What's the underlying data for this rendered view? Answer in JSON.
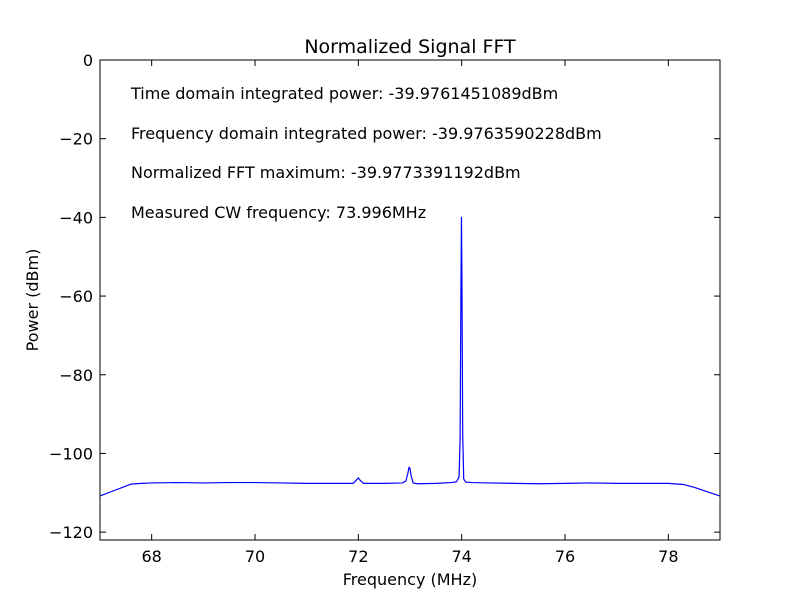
{
  "chart_data": {
    "type": "line",
    "title": "Normalized Signal FFT",
    "xlabel": "Frequency (MHz)",
    "ylabel": "Power (dBm)",
    "xlim": [
      67,
      79
    ],
    "ylim": [
      -122,
      0
    ],
    "xticks": [
      68,
      70,
      72,
      74,
      76,
      78
    ],
    "xtick_labels": [
      "68",
      "70",
      "72",
      "74",
      "76",
      "78"
    ],
    "yticks": [
      0,
      -20,
      -40,
      -60,
      -80,
      -100,
      -120
    ],
    "ytick_labels": [
      "0",
      "−20",
      "−40",
      "−60",
      "−80",
      "−100",
      "−120"
    ],
    "grid": false,
    "line_color": "#0000ff",
    "annotations": [
      "Time domain integrated power: -39.9761451089dBm",
      "Frequency domain integrated power: -39.9763590228dBm",
      "Normalized FFT maximum: -39.9773391192dBm",
      "Measured CW frequency: 73.996MHz"
    ],
    "series": [
      {
        "x": [
          67.0,
          67.2,
          67.4,
          67.6,
          67.8,
          68.0,
          68.5,
          69.0,
          69.5,
          70.0,
          70.5,
          71.0,
          71.5,
          71.9,
          71.96,
          72.0,
          72.04,
          72.1,
          72.5,
          72.85,
          72.92,
          72.96,
          72.98,
          73.0,
          73.02,
          73.06,
          73.15,
          73.5,
          73.8,
          73.9,
          73.95,
          73.97,
          73.985,
          73.996,
          74.005,
          74.02,
          74.04,
          74.08,
          74.2,
          74.5,
          75.0,
          75.5,
          76.0,
          76.5,
          77.0,
          77.5,
          78.0,
          78.3,
          78.5,
          78.7,
          78.9,
          79.0
        ],
        "y": [
          -110.8,
          -109.8,
          -108.8,
          -107.8,
          -107.6,
          -107.5,
          -107.4,
          -107.5,
          -107.4,
          -107.4,
          -107.5,
          -107.6,
          -107.6,
          -107.6,
          -106.8,
          -106.2,
          -106.9,
          -107.6,
          -107.6,
          -107.5,
          -107.0,
          -105.0,
          -103.5,
          -103.8,
          -105.6,
          -107.5,
          -107.7,
          -107.6,
          -107.4,
          -107.2,
          -106.0,
          -96.0,
          -60.0,
          -40.0,
          -55.0,
          -95.0,
          -106.5,
          -107.3,
          -107.4,
          -107.5,
          -107.6,
          -107.7,
          -107.6,
          -107.5,
          -107.6,
          -107.6,
          -107.6,
          -107.9,
          -108.6,
          -109.5,
          -110.4,
          -110.8
        ]
      }
    ]
  }
}
